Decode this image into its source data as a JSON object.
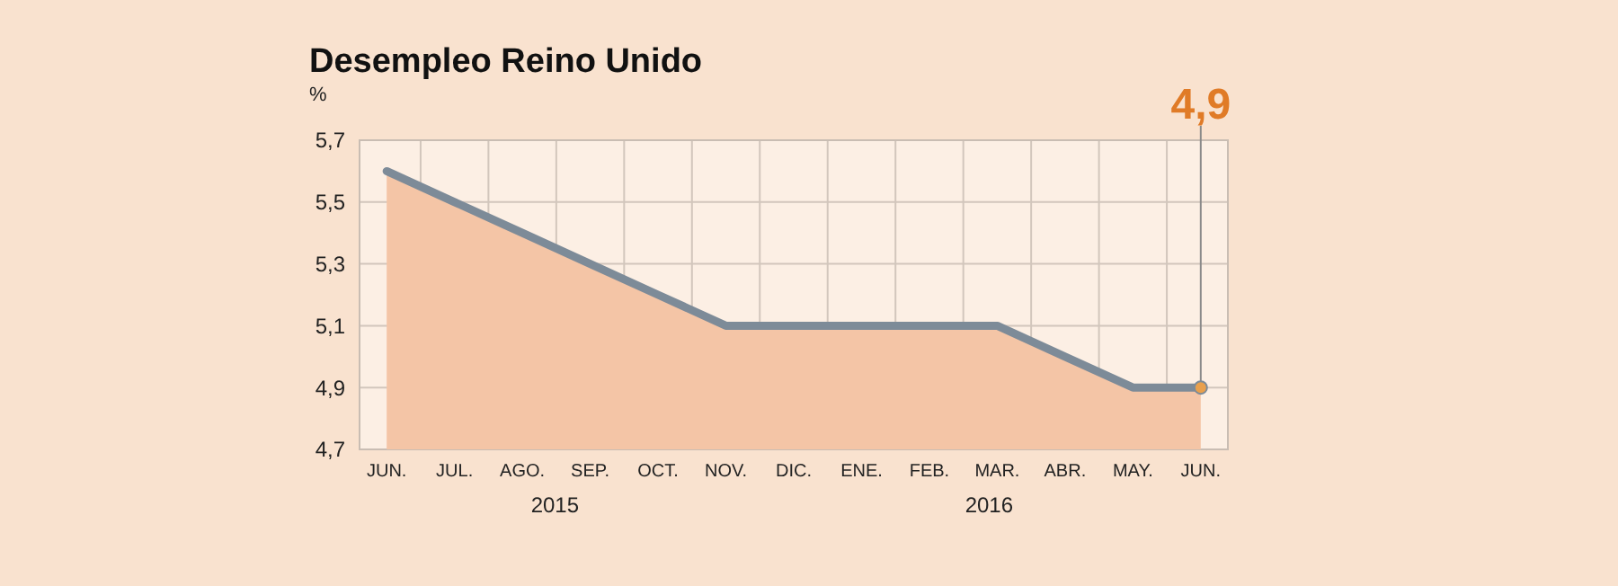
{
  "chart_data": {
    "type": "area",
    "title": "Desempleo Reino Unido",
    "ylabel": "%",
    "categories": [
      "JUN.",
      "JUL.",
      "AGO.",
      "SEP.",
      "OCT.",
      "NOV.",
      "DIC.",
      "ENE.",
      "FEB.",
      "MAR.",
      "ABR.",
      "MAY.",
      "JUN."
    ],
    "series": [
      {
        "color": "#7d8b98",
        "values": [
          5.6,
          5.5,
          5.4,
          5.3,
          5.2,
          5.1,
          5.1,
          5.1,
          5.1,
          5.1,
          5.0,
          4.9,
          4.9
        ],
        "value_labels": [
          null,
          null,
          null,
          null,
          null,
          null,
          null,
          null,
          null,
          null,
          null,
          null,
          "4,9"
        ]
      }
    ],
    "ylim": [
      4.7,
      5.7
    ],
    "yticks": [
      {
        "value": 4.7,
        "label": "4,7"
      },
      {
        "value": 4.9,
        "label": "4,9"
      },
      {
        "value": 5.1,
        "label": "5,1"
      },
      {
        "value": 5.3,
        "label": "5,3"
      },
      {
        "value": 5.5,
        "label": "5,5"
      },
      {
        "value": 5.7,
        "label": "5,7"
      }
    ],
    "annotations": [
      "2015",
      "2016"
    ],
    "grid": true
  }
}
